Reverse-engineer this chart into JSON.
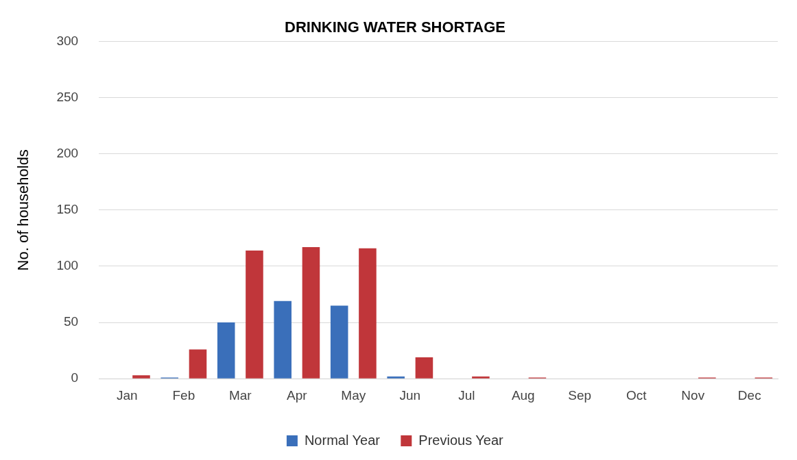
{
  "chart_data": {
    "type": "bar",
    "title": "DRINKING WATER SHORTAGE",
    "ylabel": "No. of households",
    "categories": [
      "Jan",
      "Feb",
      "Mar",
      "Apr",
      "May",
      "Jun",
      "Jul",
      "Aug",
      "Sep",
      "Oct",
      "Nov",
      "Dec"
    ],
    "series": [
      {
        "name": "Normal Year",
        "color": "#3a6fba",
        "values": [
          0,
          1,
          50,
          69,
          65,
          2,
          0,
          0,
          0,
          0,
          0,
          0
        ]
      },
      {
        "name": "Previous Year",
        "color": "#c0363a",
        "values": [
          3,
          26,
          114,
          117,
          116,
          19,
          2,
          1,
          0,
          0,
          1,
          1
        ]
      }
    ],
    "ylim": [
      0,
      300
    ],
    "yticks": [
      0,
      50,
      100,
      150,
      200,
      250,
      300
    ],
    "grid": "y",
    "legend": "bottom"
  }
}
